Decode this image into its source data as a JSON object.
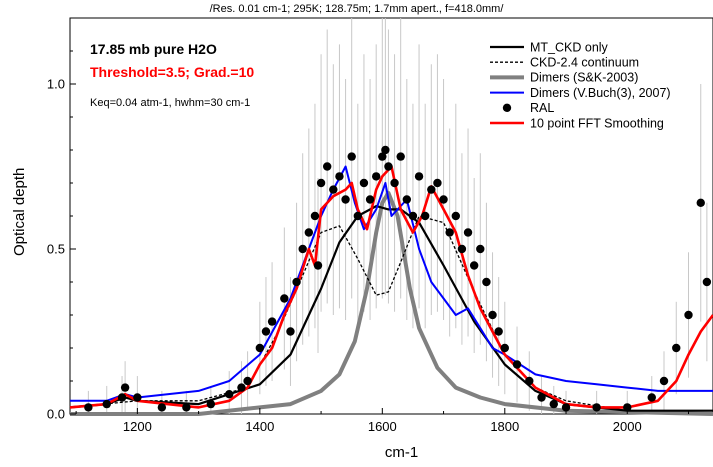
{
  "top_caption": "/Res. 0.01 cm-1; 295K; 128.75m; 1.7mm apert., f=418.0mm/",
  "annotations": {
    "sample": "17.85 mb pure H2O",
    "threshold": "Threshold=3.5;  Grad.=10",
    "keq": "Keq=0.04 atm-1, hwhm=30 cm-1"
  },
  "colors": {
    "mt_ckd": "#000000",
    "ckd24": "#000000",
    "dimers_sk": "#808080",
    "dimers_buch": "#0000ff",
    "ral": "#000000",
    "fft": "#ff0000",
    "errorbar": "#c8c8c8",
    "threshold_text": "#ff0000"
  },
  "chart_data": {
    "type": "line",
    "xlabel": "cm-1",
    "ylabel": "Optical depth",
    "xlim": [
      1090,
      2140
    ],
    "ylim": [
      0,
      1.2
    ],
    "xticks": [
      1200,
      1400,
      1600,
      1800,
      2000
    ],
    "yticks": [
      0.0,
      0.5,
      1.0
    ],
    "ytick_labels": [
      "0.0",
      "0.5",
      "1.0"
    ],
    "legend_position": "top-right",
    "grid": false,
    "series": [
      {
        "name": "MT_CKD only",
        "style": "solid",
        "x": [
          1090,
          1150,
          1180,
          1200,
          1300,
          1400,
          1450,
          1500,
          1530,
          1560,
          1590,
          1610,
          1630,
          1660,
          1700,
          1750,
          1800,
          1850,
          1900,
          1950,
          2000,
          2050,
          2140
        ],
        "y": [
          0.02,
          0.03,
          0.05,
          0.04,
          0.03,
          0.09,
          0.18,
          0.38,
          0.52,
          0.6,
          0.63,
          0.62,
          0.62,
          0.58,
          0.45,
          0.28,
          0.15,
          0.07,
          0.03,
          0.02,
          0.01,
          0.01,
          0.01
        ]
      },
      {
        "name": "CKD-2.4 continuum",
        "style": "dashed",
        "x": [
          1090,
          1200,
          1300,
          1380,
          1430,
          1470,
          1500,
          1530,
          1560,
          1590,
          1610,
          1630,
          1660,
          1700,
          1750,
          1800,
          1850,
          1900,
          2000,
          2140
        ],
        "y": [
          0.02,
          0.04,
          0.04,
          0.08,
          0.25,
          0.42,
          0.55,
          0.57,
          0.47,
          0.36,
          0.37,
          0.46,
          0.6,
          0.58,
          0.37,
          0.18,
          0.08,
          0.04,
          0.01,
          0.01
        ]
      },
      {
        "name": "Dimers (S&K-2003)",
        "style": "thick",
        "x": [
          1090,
          1300,
          1400,
          1450,
          1500,
          1530,
          1555,
          1575,
          1590,
          1600,
          1610,
          1625,
          1645,
          1660,
          1690,
          1720,
          1760,
          1800,
          1900,
          2140
        ],
        "y": [
          0.0,
          0.0,
          0.02,
          0.03,
          0.07,
          0.12,
          0.22,
          0.38,
          0.55,
          0.64,
          0.67,
          0.6,
          0.38,
          0.26,
          0.14,
          0.08,
          0.05,
          0.03,
          0.01,
          0.0
        ]
      },
      {
        "name": "Dimers (V.Buch(3), 2007)",
        "style": "solid",
        "x": [
          1090,
          1150,
          1180,
          1200,
          1300,
          1350,
          1400,
          1450,
          1480,
          1500,
          1520,
          1540,
          1555,
          1570,
          1590,
          1605,
          1615,
          1640,
          1660,
          1680,
          1700,
          1720,
          1740,
          1760,
          1780,
          1800,
          1850,
          1900,
          1950,
          2000,
          2050,
          2100,
          2140
        ],
        "y": [
          0.04,
          0.04,
          0.06,
          0.05,
          0.07,
          0.1,
          0.18,
          0.35,
          0.5,
          0.6,
          0.68,
          0.75,
          0.64,
          0.56,
          0.62,
          0.7,
          0.6,
          0.65,
          0.5,
          0.4,
          0.35,
          0.3,
          0.32,
          0.26,
          0.2,
          0.18,
          0.12,
          0.1,
          0.09,
          0.08,
          0.07,
          0.07,
          0.07
        ]
      },
      {
        "name": "RAL",
        "style": "points",
        "x": [
          1120,
          1150,
          1175,
          1180,
          1200,
          1240,
          1280,
          1320,
          1350,
          1370,
          1380,
          1400,
          1410,
          1420,
          1440,
          1450,
          1460,
          1470,
          1480,
          1490,
          1495,
          1500,
          1510,
          1520,
          1530,
          1540,
          1550,
          1560,
          1570,
          1580,
          1590,
          1600,
          1605,
          1610,
          1620,
          1630,
          1640,
          1650,
          1660,
          1670,
          1680,
          1690,
          1700,
          1710,
          1720,
          1730,
          1740,
          1750,
          1760,
          1770,
          1780,
          1790,
          1800,
          1820,
          1840,
          1860,
          1880,
          1900,
          1950,
          2000,
          2040,
          2060,
          2080,
          2100,
          2120,
          2130
        ],
        "y": [
          0.02,
          0.03,
          0.05,
          0.08,
          0.05,
          0.02,
          0.02,
          0.03,
          0.06,
          0.08,
          0.1,
          0.2,
          0.25,
          0.28,
          0.35,
          0.25,
          0.4,
          0.5,
          0.55,
          0.6,
          0.45,
          0.7,
          0.75,
          0.68,
          0.72,
          0.65,
          0.78,
          0.6,
          0.7,
          0.65,
          0.72,
          0.78,
          0.8,
          0.75,
          0.7,
          0.78,
          0.65,
          0.6,
          0.72,
          0.6,
          0.68,
          0.7,
          0.65,
          0.55,
          0.6,
          0.5,
          0.55,
          0.45,
          0.5,
          0.4,
          0.3,
          0.25,
          0.2,
          0.15,
          0.1,
          0.05,
          0.03,
          0.02,
          0.02,
          0.02,
          0.05,
          0.1,
          0.2,
          0.3,
          0.64,
          0.4
        ]
      },
      {
        "name": "10 point FFT Smoothing",
        "style": "solid",
        "x": [
          1090,
          1150,
          1180,
          1200,
          1300,
          1350,
          1380,
          1400,
          1420,
          1440,
          1460,
          1480,
          1490,
          1500,
          1520,
          1540,
          1550,
          1560,
          1575,
          1590,
          1600,
          1615,
          1630,
          1650,
          1665,
          1680,
          1700,
          1720,
          1740,
          1760,
          1780,
          1800,
          1850,
          1900,
          1950,
          2000,
          2050,
          2080,
          2100,
          2120,
          2140
        ],
        "y": [
          0.02,
          0.03,
          0.06,
          0.04,
          0.02,
          0.04,
          0.08,
          0.15,
          0.2,
          0.3,
          0.38,
          0.5,
          0.45,
          0.62,
          0.66,
          0.68,
          0.7,
          0.62,
          0.56,
          0.68,
          0.72,
          0.75,
          0.62,
          0.55,
          0.6,
          0.69,
          0.62,
          0.55,
          0.42,
          0.32,
          0.25,
          0.18,
          0.08,
          0.03,
          0.02,
          0.02,
          0.04,
          0.1,
          0.18,
          0.25,
          0.3
        ]
      }
    ]
  }
}
